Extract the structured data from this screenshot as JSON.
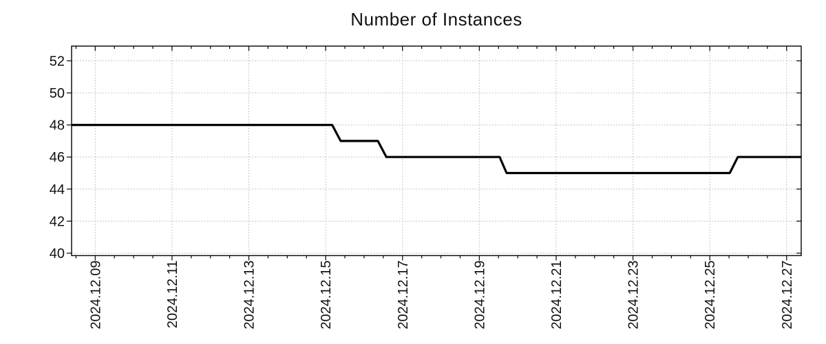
{
  "chart_data": {
    "type": "line",
    "title": "Number of Instances",
    "line_style": "step",
    "legend": "none",
    "grid": {
      "color": "#b0b0b0",
      "style": "dotted"
    },
    "x_axis": {
      "unit": "day of December 2024",
      "min": 8.385,
      "max": 27.38,
      "minor_tick_step": 0.5,
      "major_ticks": [
        {
          "value": 9,
          "label": "2024.12.09"
        },
        {
          "value": 11,
          "label": "2024.12.11"
        },
        {
          "value": 13,
          "label": "2024.12.13"
        },
        {
          "value": 15,
          "label": "2024.12.15"
        },
        {
          "value": 17,
          "label": "2024.12.17"
        },
        {
          "value": 19,
          "label": "2024.12.19"
        },
        {
          "value": 21,
          "label": "2024.12.21"
        },
        {
          "value": 23,
          "label": "2024.12.23"
        },
        {
          "value": 25,
          "label": "2024.12.25"
        },
        {
          "value": 27,
          "label": "2024.12.27"
        }
      ]
    },
    "y_axis": {
      "min": 39.85,
      "max": 52.92,
      "major_ticks": [
        40,
        42,
        44,
        46,
        48,
        50,
        52
      ]
    },
    "series": [
      {
        "name": "Number of Instances",
        "color": "#000000",
        "width": 3.2,
        "points": [
          [
            8.385,
            48
          ],
          [
            15.17,
            48
          ],
          [
            15.39,
            47
          ],
          [
            16.36,
            47
          ],
          [
            16.58,
            46
          ],
          [
            19.53,
            46
          ],
          [
            19.71,
            45
          ],
          [
            25.52,
            45
          ],
          [
            25.73,
            46
          ],
          [
            27.38,
            46
          ]
        ]
      }
    ]
  }
}
